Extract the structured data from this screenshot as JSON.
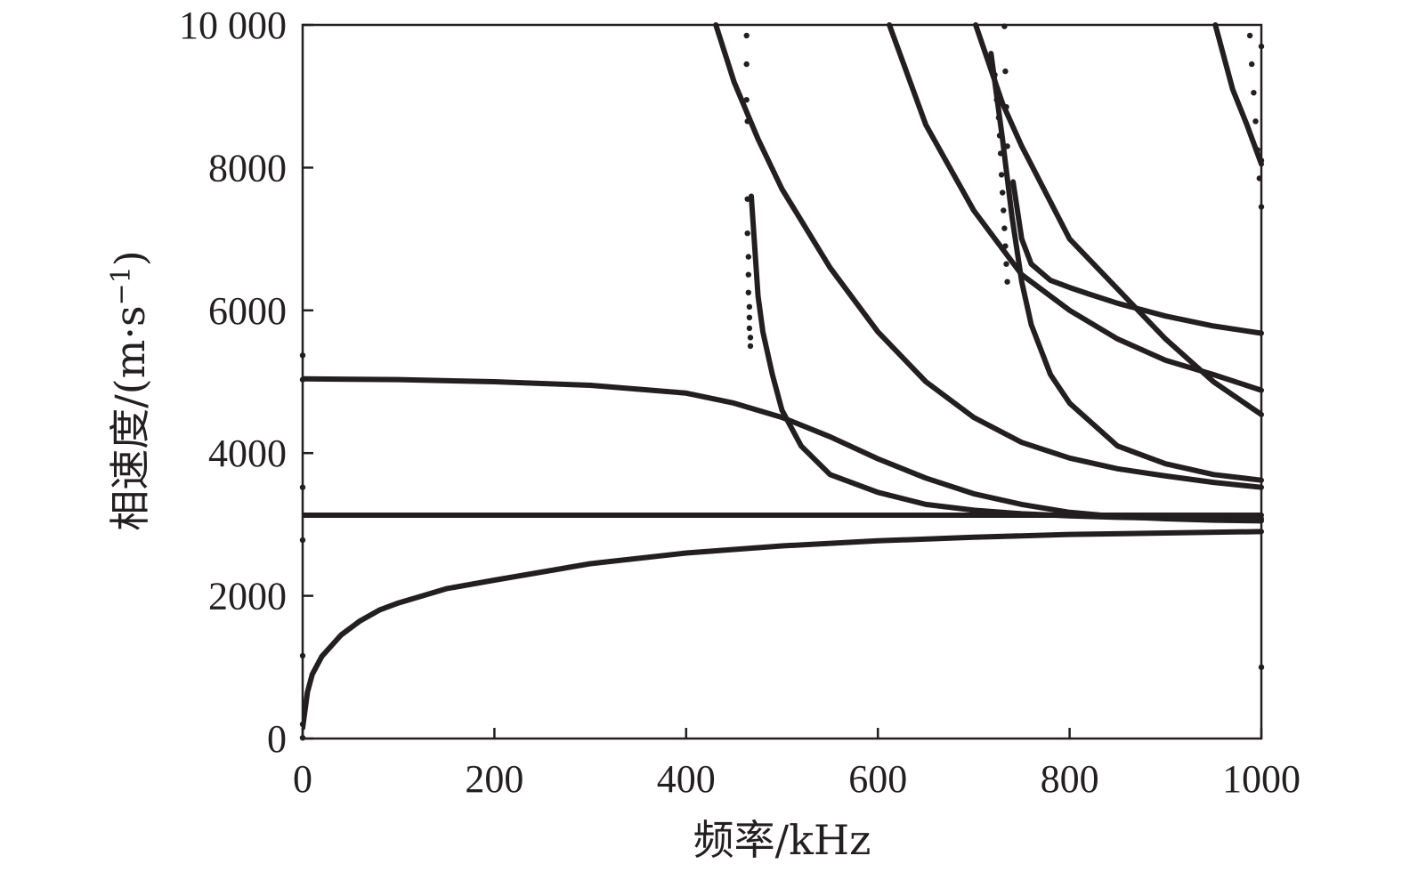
{
  "chart_data": {
    "type": "line",
    "title": "",
    "xlabel": "频率/kHz",
    "ylabel": "相速度/(m·s",
    "ylabel_sup": "−1",
    "ylabel_close": ")",
    "xlim": [
      0,
      1000
    ],
    "ylim": [
      0,
      10000
    ],
    "xticks": [
      0,
      200,
      400,
      600,
      800,
      1000
    ],
    "xtick_labels": [
      "0",
      "200",
      "400",
      "600",
      "800",
      "1000"
    ],
    "yticks": [
      0,
      2000,
      4000,
      6000,
      8000,
      10000
    ],
    "ytick_labels": [
      "0",
      "2000",
      "4000",
      "6000",
      "8000",
      "10 000"
    ],
    "grid": false,
    "legend": "none",
    "colors": {
      "ink": "#231f20"
    },
    "series": [
      {
        "x": [
          0,
          5,
          10,
          20,
          40,
          60,
          80,
          100,
          150,
          200,
          300,
          400,
          500,
          600,
          700,
          800,
          900,
          1000
        ],
        "y": [
          150,
          650,
          900,
          1150,
          1450,
          1650,
          1800,
          1900,
          2100,
          2220,
          2450,
          2600,
          2700,
          2770,
          2820,
          2860,
          2880,
          2900
        ]
      },
      {
        "x": [
          0,
          200,
          400,
          600,
          800,
          1000
        ],
        "y": [
          3130,
          3130,
          3130,
          3130,
          3130,
          3130
        ]
      },
      {
        "x": [
          0,
          100,
          200,
          300,
          400,
          450,
          500,
          550,
          600,
          650,
          700,
          750,
          800,
          850,
          900,
          950,
          1000
        ],
        "y": [
          5040,
          5030,
          5000,
          4950,
          4840,
          4700,
          4500,
          4230,
          3920,
          3650,
          3430,
          3280,
          3170,
          3110,
          3080,
          3060,
          3050
        ]
      },
      {
        "x": [
          431,
          450,
          475,
          500,
          550,
          600,
          650,
          700,
          750,
          800,
          850,
          900,
          950,
          1000
        ],
        "y": [
          10000,
          9200,
          8400,
          7700,
          6600,
          5700,
          5000,
          4500,
          4150,
          3930,
          3780,
          3680,
          3590,
          3520
        ]
      },
      {
        "x": [
          468,
          475,
          480,
          490,
          500,
          520,
          550,
          600,
          650,
          700,
          750,
          800,
          850,
          900,
          1000
        ],
        "y": [
          7600,
          6200,
          5700,
          5100,
          4600,
          4100,
          3700,
          3450,
          3280,
          3200,
          3150,
          3120,
          3100,
          3090,
          3080
        ]
      },
      {
        "x": [
          612,
          650,
          700,
          750,
          800,
          850,
          900,
          950,
          1000
        ],
        "y": [
          10000,
          8600,
          7400,
          6500,
          6000,
          5600,
          5300,
          5100,
          4880
        ]
      },
      {
        "x": [
          702,
          730,
          750,
          800,
          850,
          900,
          950,
          1000
        ],
        "y": [
          10000,
          8900,
          8300,
          7000,
          6300,
          5600,
          5000,
          4540
        ]
      },
      {
        "x": [
          718,
          730,
          740,
          750,
          760,
          780,
          800,
          850,
          900,
          950,
          1000
        ],
        "y": [
          9600,
          8400,
          7300,
          6400,
          5800,
          5100,
          4700,
          4100,
          3850,
          3700,
          3620
        ]
      },
      {
        "x": [
          741,
          750,
          760,
          780,
          800,
          820,
          850,
          900,
          950,
          1000
        ],
        "y": [
          7800,
          7000,
          6650,
          6420,
          6320,
          6230,
          6100,
          5920,
          5780,
          5680
        ]
      },
      {
        "x": [
          952,
          970,
          985,
          1000
        ],
        "y": [
          10000,
          9100,
          8600,
          8050
        ]
      }
    ],
    "scatter_series": [
      {
        "x": [
          0,
          0,
          0,
          0,
          0,
          0,
          0,
          1000,
          1000,
          1000
        ],
        "y": [
          5370,
          5030,
          3520,
          2780,
          1160,
          200,
          10,
          9700,
          8100,
          1000
        ]
      },
      {
        "x": [
          463,
          463,
          463,
          464,
          464,
          464,
          465,
          465,
          465,
          466,
          466,
          466,
          467,
          467
        ],
        "y": [
          9850,
          9450,
          8950,
          8650,
          7560,
          7080,
          6750,
          6500,
          6250,
          6050,
          5900,
          5750,
          5620,
          5500
        ]
      },
      {
        "x": [
          722,
          724,
          726,
          727,
          728,
          729,
          730,
          731,
          732,
          733,
          734,
          735
        ],
        "y": [
          9300,
          8950,
          8700,
          8450,
          8200,
          7900,
          7650,
          7400,
          7150,
          6900,
          6650,
          6400
        ]
      },
      {
        "x": [
          732,
          733,
          734,
          735
        ],
        "y": [
          9980,
          9350,
          8850,
          8300
        ]
      },
      {
        "x": [
          988,
          990,
          992,
          994,
          996,
          998,
          1000
        ],
        "y": [
          9850,
          9450,
          9050,
          8650,
          8250,
          7850,
          7450
        ]
      }
    ]
  }
}
